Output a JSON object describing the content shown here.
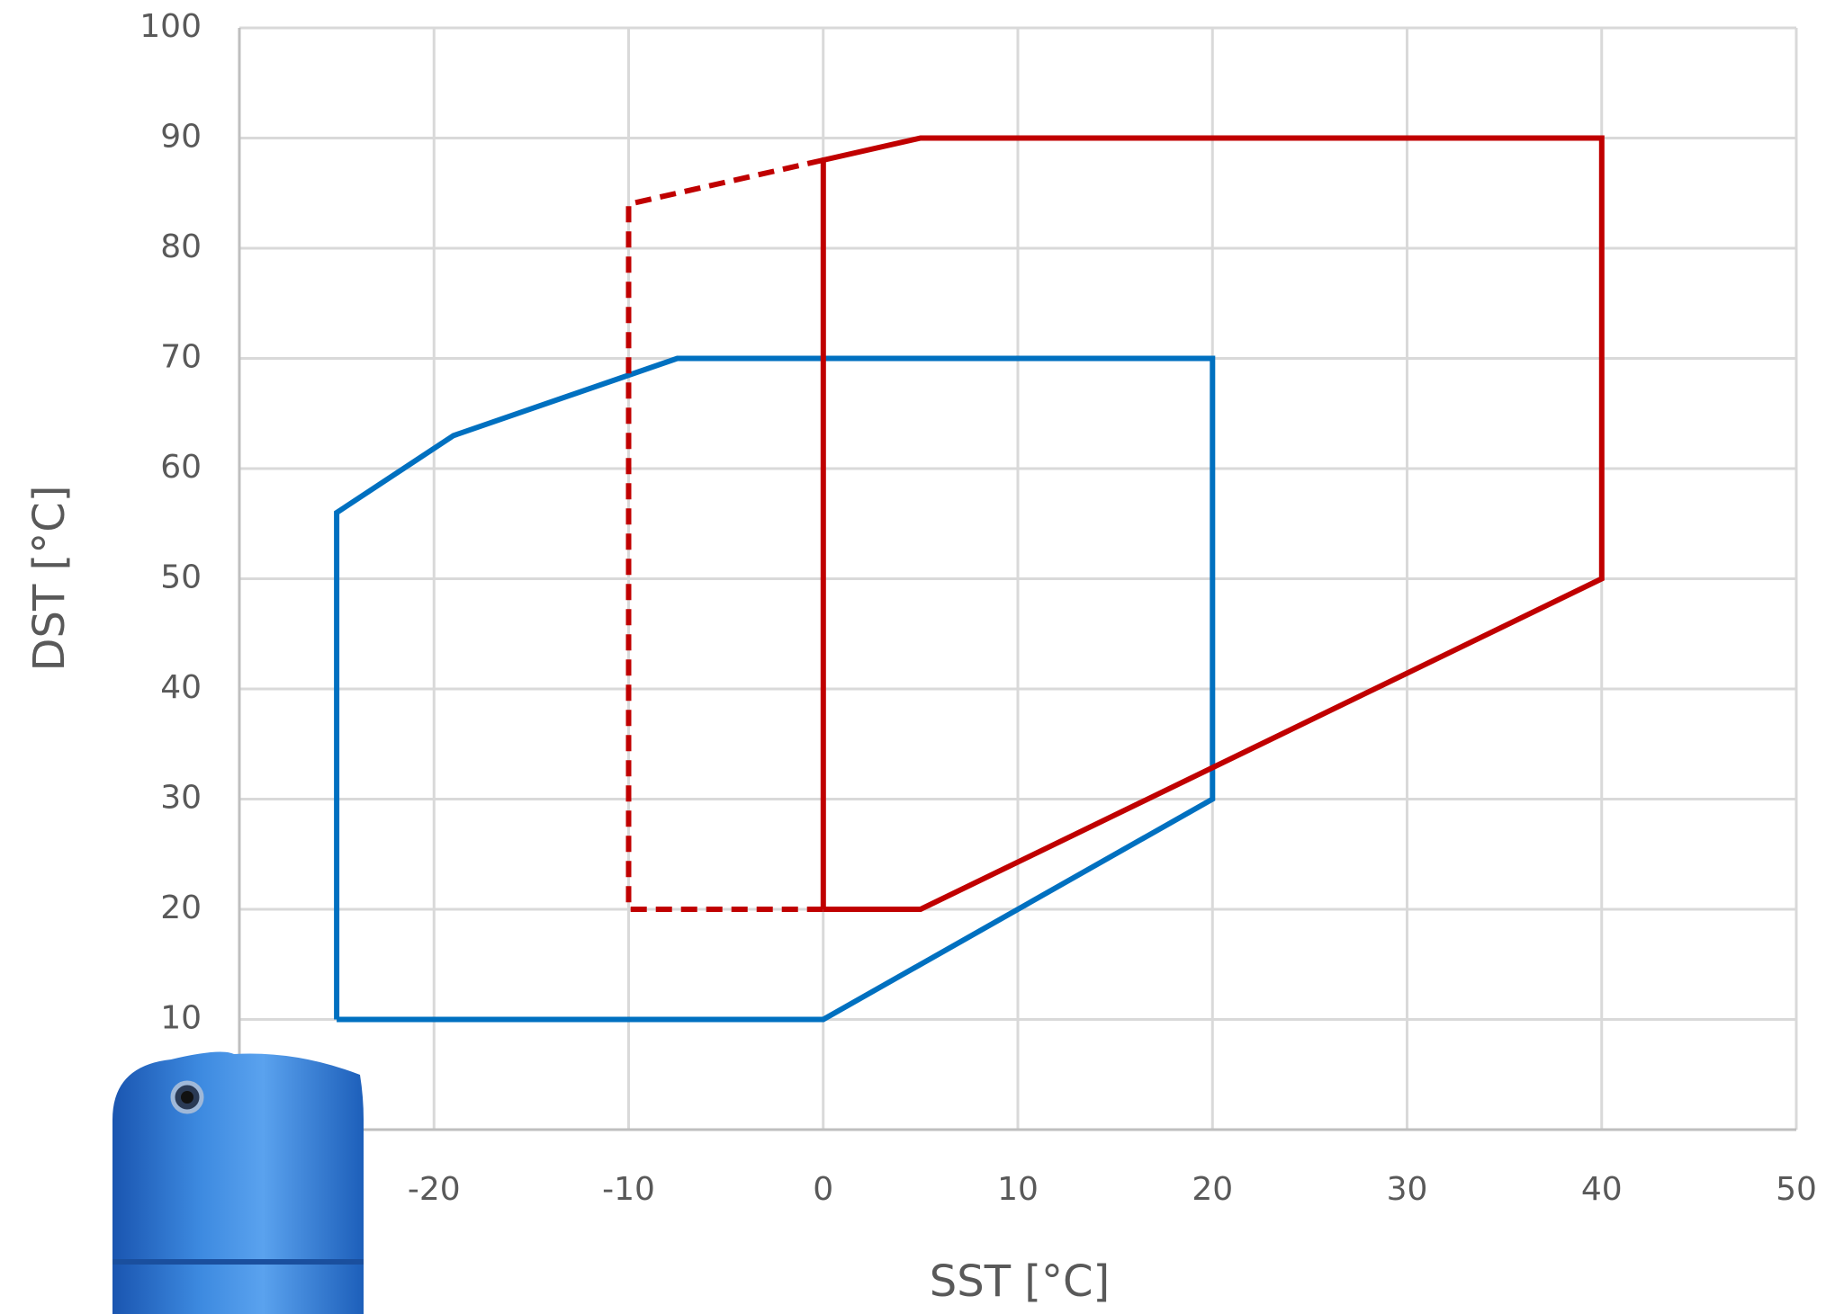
{
  "chart_data": {
    "type": "line",
    "x_label": "SST [°C]",
    "y_label": "DST [°C]",
    "xlim": [
      -30,
      50
    ],
    "xticks": [
      -20,
      -10,
      0,
      10,
      20,
      30,
      40,
      50
    ],
    "ylim": [
      0,
      100
    ],
    "yticks": [
      10,
      20,
      30,
      40,
      50,
      60,
      70,
      80,
      90,
      100
    ],
    "grid": true,
    "series": [
      {
        "color": "#0070c0",
        "dashed": false,
        "x": [
          -25,
          -25,
          -19,
          -7.5,
          20,
          20,
          0,
          -25
        ],
        "values": [
          10,
          56,
          63,
          70,
          70,
          30,
          10,
          10
        ]
      },
      {
        "color": "#c00000",
        "dashed": false,
        "x": [
          0,
          0,
          5,
          40,
          40,
          5,
          0
        ],
        "values": [
          20,
          88,
          90,
          90,
          50,
          20,
          20
        ]
      },
      {
        "color": "#c00000",
        "dashed": true,
        "x": [
          0,
          -10,
          -10,
          0
        ],
        "values": [
          88,
          84,
          20,
          20
        ]
      }
    ]
  }
}
